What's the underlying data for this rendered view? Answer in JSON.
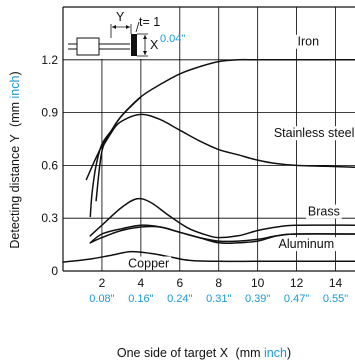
{
  "chart_data": {
    "type": "line",
    "xlabel": "One side of target X",
    "xunit_prefix": "(mm ",
    "xunit_alt": "inch",
    "xunit_suffix": ")",
    "ylabel": "Detecting distance Y",
    "yunit_prefix": "(mm ",
    "yunit_alt": "inch",
    "yunit_suffix": ")",
    "xlim": [
      0,
      15
    ],
    "ylim": [
      0,
      1.5
    ],
    "x_ticks": [
      2,
      4,
      6,
      8,
      10,
      12,
      14
    ],
    "x_tick_labels": [
      "2",
      "4",
      "6",
      "8",
      "10",
      "12",
      "14"
    ],
    "x_tick_inch_labels": [
      "0.08\"",
      "0.16\"",
      "0.24\"",
      "0.31\"",
      "0.39\"",
      "0.47\"",
      "0.55\""
    ],
    "y_ticks": [
      0,
      0.3,
      0.6,
      0.9,
      1.2
    ],
    "y_tick_labels": [
      "0",
      "0.3",
      "0.6",
      "0.9",
      "1.2"
    ],
    "grid": true,
    "series": [
      {
        "name": "Iron",
        "bands": [
          [
            [
              1.2,
              0.52
            ],
            [
              1.6,
              0.62
            ],
            [
              2.0,
              0.71
            ],
            [
              2.5,
              0.8
            ],
            [
              3.0,
              0.88
            ],
            [
              4.0,
              0.99
            ],
            [
              5.0,
              1.06
            ],
            [
              6.0,
              1.12
            ],
            [
              7.0,
              1.16
            ],
            [
              8.0,
              1.19
            ],
            [
              9.0,
              1.2
            ],
            [
              10.0,
              1.2
            ],
            [
              12.0,
              1.2
            ],
            [
              15.0,
              1.2
            ]
          ],
          [
            [
              1.4,
              0.31
            ],
            [
              1.5,
              0.45
            ],
            [
              1.7,
              0.6
            ],
            [
              2.0,
              0.72
            ],
            [
              2.5,
              0.8
            ],
            [
              3.0,
              0.88
            ],
            [
              4.0,
              0.99
            ]
          ]
        ]
      },
      {
        "name": "Stainless steel",
        "bands": [
          [
            [
              1.7,
              0.4
            ],
            [
              2.0,
              0.68
            ],
            [
              2.5,
              0.79
            ],
            [
              3.0,
              0.85
            ],
            [
              4.0,
              0.89
            ],
            [
              5.0,
              0.86
            ],
            [
              6.0,
              0.8
            ],
            [
              7.0,
              0.74
            ],
            [
              8.0,
              0.69
            ],
            [
              9.0,
              0.66
            ],
            [
              10.0,
              0.63
            ],
            [
              11.0,
              0.61
            ],
            [
              12.0,
              0.6
            ],
            [
              13.5,
              0.595
            ],
            [
              15.0,
              0.59
            ]
          ],
          [
            [
              2.0,
              0.7
            ],
            [
              2.5,
              0.79
            ]
          ]
        ]
      },
      {
        "name": "Brass",
        "bands": [
          [
            [
              1.4,
              0.2
            ],
            [
              2.0,
              0.26
            ],
            [
              3.0,
              0.36
            ],
            [
              3.8,
              0.41
            ],
            [
              4.5,
              0.39
            ],
            [
              5.5,
              0.31
            ],
            [
              6.5,
              0.24
            ],
            [
              7.5,
              0.2
            ],
            [
              8.0,
              0.19
            ],
            [
              9.0,
              0.2
            ],
            [
              10.0,
              0.23
            ],
            [
              11.0,
              0.25
            ],
            [
              12.0,
              0.26
            ],
            [
              15.0,
              0.26
            ]
          ],
          [
            [
              1.4,
              0.16
            ],
            [
              2.0,
              0.19
            ],
            [
              3.0,
              0.23
            ],
            [
              4.0,
              0.25
            ],
            [
              5.0,
              0.25
            ],
            [
              6.0,
              0.22
            ],
            [
              7.0,
              0.19
            ],
            [
              8.0,
              0.16
            ],
            [
              9.0,
              0.16
            ],
            [
              10.0,
              0.17
            ],
            [
              11.0,
              0.2
            ],
            [
              12.0,
              0.21
            ],
            [
              15.0,
              0.21
            ]
          ]
        ]
      },
      {
        "name": "Aluminum",
        "bands": [
          [
            [
              1.4,
              0.16
            ],
            [
              2.0,
              0.21
            ],
            [
              3.0,
              0.24
            ],
            [
              4.0,
              0.26
            ],
            [
              5.0,
              0.25
            ],
            [
              6.0,
              0.22
            ],
            [
              7.0,
              0.19
            ],
            [
              8.0,
              0.17
            ],
            [
              9.0,
              0.17
            ],
            [
              10.0,
              0.18
            ],
            [
              11.0,
              0.2
            ],
            [
              12.0,
              0.21
            ],
            [
              15.0,
              0.21
            ]
          ]
        ]
      },
      {
        "name": "Copper",
        "bands": [
          [
            [
              0.0,
              0.05
            ],
            [
              1.5,
              0.07
            ],
            [
              2.5,
              0.09
            ],
            [
              3.5,
              0.11
            ],
            [
              4.5,
              0.1
            ],
            [
              5.5,
              0.08
            ],
            [
              6.5,
              0.06
            ],
            [
              8.0,
              0.055
            ],
            [
              10.0,
              0.055
            ],
            [
              12.0,
              0.055
            ],
            [
              15.0,
              0.055
            ]
          ]
        ]
      }
    ],
    "curve_labels": [
      {
        "text": "Iron",
        "x": 12.6,
        "y": 1.28
      },
      {
        "text": "Stainless steel",
        "x": 12.9,
        "y": 0.76
      },
      {
        "text": "Brass",
        "x": 13.4,
        "y": 0.315
      },
      {
        "text": "Aluminum",
        "x": 12.5,
        "y": 0.13
      },
      {
        "text": "Copper",
        "x": 4.4,
        "y": 0.02
      }
    ],
    "inset": {
      "y_label": "Y",
      "x_label": "X",
      "t_label": "t= 1",
      "x_inch": "0.04\""
    },
    "colors": {
      "line": "#111111",
      "grid": "#000000",
      "axis": "#111111",
      "inch_text": "#1a9ad6"
    }
  }
}
